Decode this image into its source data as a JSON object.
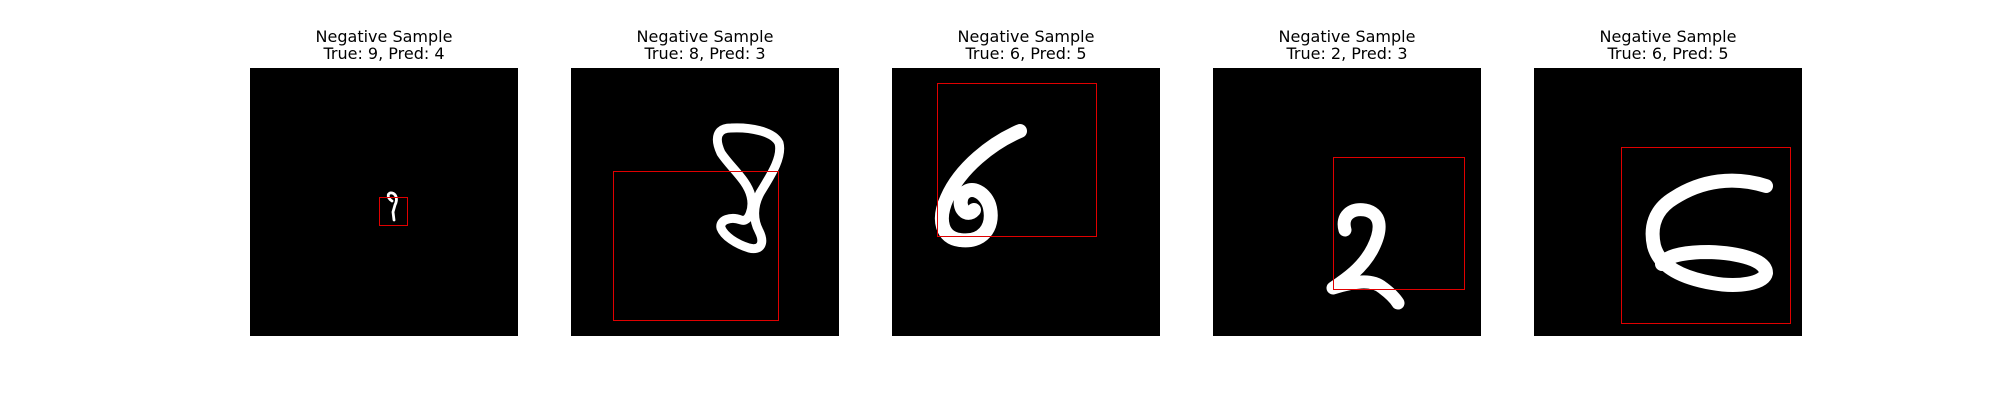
{
  "panels": [
    {
      "title": "Negative Sample",
      "subtitle": "True: 9, Pred: 4",
      "digit": "9"
    },
    {
      "title": "Negative Sample",
      "subtitle": "True: 8, Pred: 3",
      "digit": "8"
    },
    {
      "title": "Negative Sample",
      "subtitle": "True: 6, Pred: 5",
      "digit": "6"
    },
    {
      "title": "Negative Sample",
      "subtitle": "True: 2, Pred: 3",
      "digit": "2"
    },
    {
      "title": "Negative Sample",
      "subtitle": "True: 6, Pred: 5",
      "digit": "6"
    }
  ],
  "colors": {
    "background": "#000000",
    "stroke": "#ffffff",
    "box": "#e00000"
  }
}
